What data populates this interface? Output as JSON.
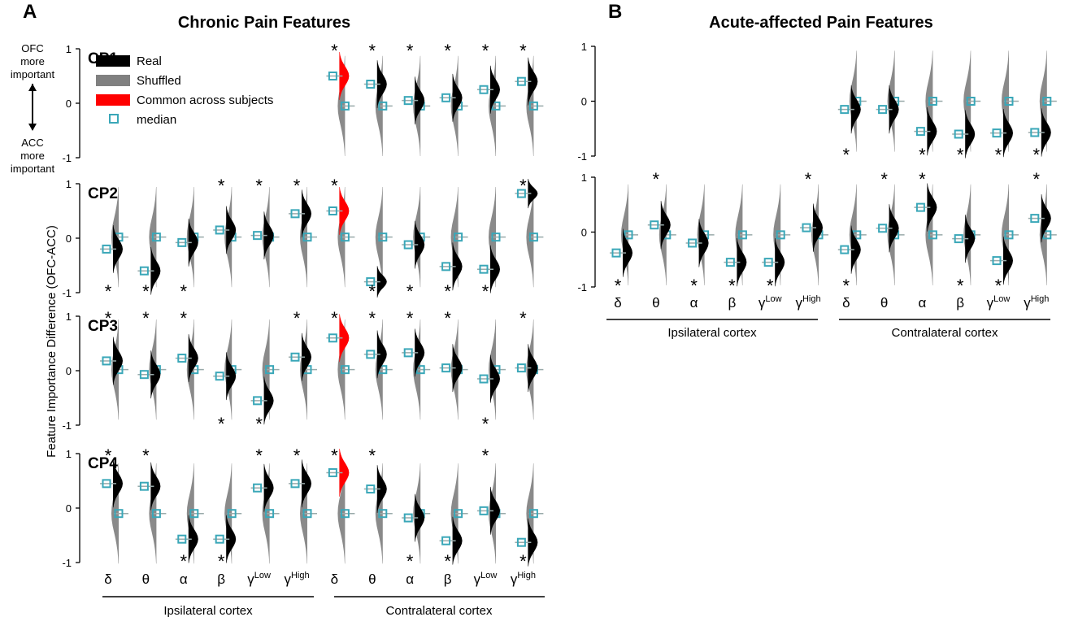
{
  "panel_a": {
    "letter": "A",
    "title": "Chronic Pain Features",
    "ylabel": "Feature Importance Difference (OFC-ACC)",
    "annot_top": [
      "OFC",
      "more",
      "important"
    ],
    "annot_bottom": [
      "ACC",
      "more",
      "important"
    ],
    "legend": [
      {
        "label": "Real",
        "color": "#000000",
        "kind": "patch"
      },
      {
        "label": "Shuffled",
        "color": "#808080",
        "kind": "patch"
      },
      {
        "label": "Common across subjects",
        "color": "#ff0000",
        "kind": "patch"
      },
      {
        "label": "median",
        "color": "#3aa7b8",
        "kind": "square"
      }
    ],
    "tick_labels": [
      "1",
      "0",
      "-1"
    ],
    "groups": [
      "Ipsilateral cortex",
      "Contralateral cortex"
    ]
  },
  "panel_b": {
    "letter": "B",
    "title": "Acute-affected Pain Features",
    "tick_labels": [
      "1",
      "0",
      "-1"
    ],
    "groups": [
      "Ipsilateral cortex",
      "Contralateral cortex"
    ]
  },
  "colors": {
    "real": "#000000",
    "shuffled": "#8a8a8a",
    "common": "#ff0000",
    "median": "#3aa7b8"
  },
  "chart_data": [
    {
      "type": "violin",
      "panel": "A",
      "row_labels": [
        "CP1",
        "CP2",
        "CP3",
        "CP4"
      ],
      "ylim": [
        -1,
        1
      ],
      "yticks": [
        -1,
        0,
        1
      ],
      "categories": [
        {
          "greek": "δ",
          "sup": "",
          "highlight": false
        },
        {
          "greek": "θ",
          "sup": "",
          "highlight": false
        },
        {
          "greek": "α",
          "sup": "",
          "highlight": false
        },
        {
          "greek": "β",
          "sup": "",
          "highlight": false
        },
        {
          "greek": "γ",
          "sup": "Low",
          "highlight": false
        },
        {
          "greek": "γ",
          "sup": "High",
          "highlight": false
        },
        {
          "greek": "δ",
          "sup": "",
          "highlight": true
        },
        {
          "greek": "θ",
          "sup": "",
          "highlight": false
        },
        {
          "greek": "α",
          "sup": "",
          "highlight": false
        },
        {
          "greek": "β",
          "sup": "",
          "highlight": false
        },
        {
          "greek": "γ",
          "sup": "Low",
          "highlight": false
        },
        {
          "greek": "γ",
          "sup": "High",
          "highlight": false
        }
      ],
      "rows": [
        {
          "real": [
            null,
            null,
            null,
            null,
            null,
            null,
            0.5,
            0.35,
            0.05,
            0.1,
            0.25,
            0.4
          ],
          "shuf": [
            null,
            null,
            null,
            null,
            null,
            null,
            -0.05,
            -0.05,
            -0.05,
            -0.05,
            -0.05,
            -0.05
          ],
          "star": [
            0,
            0,
            0,
            0,
            0,
            0,
            1,
            1,
            1,
            1,
            1,
            1
          ],
          "common": [
            6
          ]
        },
        {
          "real": [
            -0.2,
            -0.6,
            -0.08,
            0.15,
            0.05,
            0.45,
            0.5,
            -0.8,
            -0.12,
            -0.52,
            -0.57,
            0.82
          ],
          "shuf": [
            0.02,
            0.02,
            0.02,
            0.02,
            0.02,
            0.02,
            0.02,
            0.02,
            0.02,
            0.02,
            0.02,
            0.02
          ],
          "star": [
            -1,
            -1,
            -1,
            1,
            1,
            1,
            1,
            -1,
            -1,
            -1,
            -1,
            1
          ],
          "common": [
            6
          ]
        },
        {
          "real": [
            0.18,
            -0.07,
            0.23,
            -0.1,
            -0.55,
            0.25,
            0.6,
            0.3,
            0.33,
            0.05,
            -0.15,
            0.05
          ],
          "shuf": [
            0.02,
            0.02,
            0.02,
            0.02,
            0.02,
            0.02,
            0.02,
            0.02,
            0.02,
            0.02,
            0.02,
            0.02
          ],
          "star": [
            1,
            1,
            1,
            -1,
            -1,
            1,
            1,
            1,
            1,
            1,
            -1,
            1
          ],
          "common": [
            6
          ]
        },
        {
          "real": [
            0.45,
            0.4,
            -0.57,
            -0.57,
            0.37,
            0.45,
            0.65,
            0.35,
            -0.18,
            -0.6,
            -0.05,
            -0.63
          ],
          "shuf": [
            -0.1,
            -0.1,
            -0.1,
            -0.1,
            -0.1,
            -0.1,
            -0.1,
            -0.1,
            -0.1,
            -0.1,
            -0.1,
            -0.1
          ],
          "star": [
            1,
            1,
            -1,
            -1,
            1,
            1,
            1,
            1,
            -1,
            -1,
            1,
            -1
          ],
          "common": [
            6
          ]
        }
      ]
    },
    {
      "type": "violin",
      "panel": "B",
      "ylim": [
        -1,
        1
      ],
      "yticks": [
        -1,
        0,
        1
      ],
      "categories": [
        {
          "greek": "δ",
          "sup": ""
        },
        {
          "greek": "θ",
          "sup": ""
        },
        {
          "greek": "α",
          "sup": ""
        },
        {
          "greek": "β",
          "sup": ""
        },
        {
          "greek": "γ",
          "sup": "Low"
        },
        {
          "greek": "γ",
          "sup": "High"
        },
        {
          "greek": "δ",
          "sup": ""
        },
        {
          "greek": "θ",
          "sup": ""
        },
        {
          "greek": "α",
          "sup": ""
        },
        {
          "greek": "β",
          "sup": ""
        },
        {
          "greek": "γ",
          "sup": "Low"
        },
        {
          "greek": "γ",
          "sup": "High"
        }
      ],
      "rows": [
        {
          "real": [
            null,
            null,
            null,
            null,
            null,
            null,
            -0.15,
            -0.15,
            -0.55,
            -0.6,
            -0.58,
            -0.57
          ],
          "shuf": [
            null,
            null,
            null,
            null,
            null,
            null,
            0.0,
            0.0,
            0.0,
            0.0,
            0.0,
            0.0
          ],
          "star": [
            0,
            0,
            0,
            0,
            0,
            0,
            -1,
            0,
            -1,
            -1,
            -1,
            -1
          ]
        },
        {
          "real": [
            -0.38,
            0.13,
            -0.2,
            -0.55,
            -0.55,
            0.08,
            -0.32,
            0.07,
            0.45,
            -0.12,
            -0.52,
            0.25
          ],
          "shuf": [
            -0.05,
            -0.05,
            -0.05,
            -0.05,
            -0.05,
            -0.05,
            -0.05,
            -0.05,
            -0.05,
            -0.05,
            -0.05,
            -0.05
          ],
          "star": [
            -1,
            1,
            -1,
            -1,
            -1,
            1,
            -1,
            1,
            1,
            -1,
            -1,
            1
          ]
        }
      ]
    }
  ]
}
